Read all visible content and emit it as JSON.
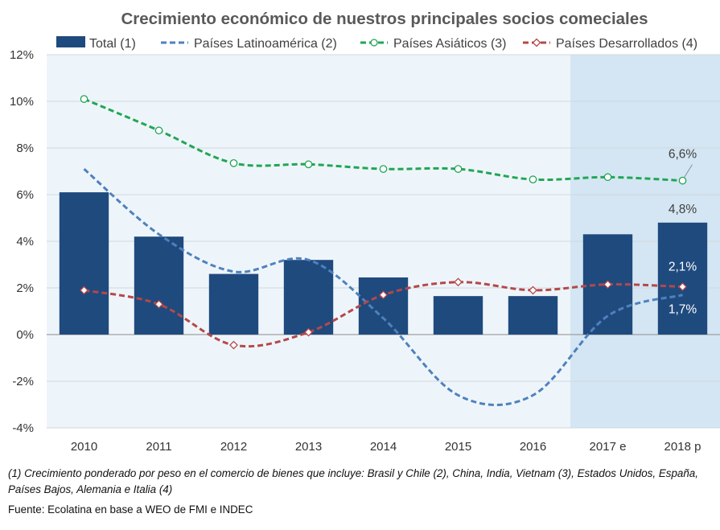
{
  "chart_data": {
    "type": "bar+line",
    "title": "Crecimiento económico de nuestros principales socios comeciales",
    "categories": [
      "2010",
      "2011",
      "2012",
      "2013",
      "2014",
      "2015",
      "2016",
      "2017 e",
      "2018 p"
    ],
    "ylim": [
      -4,
      12
    ],
    "yticks": [
      -4,
      -2,
      0,
      2,
      4,
      6,
      8,
      10,
      12
    ],
    "ytick_labels": [
      "-4%",
      "-2%",
      "0%",
      "2%",
      "4%",
      "6%",
      "8%",
      "10%",
      "12%"
    ],
    "grid": true,
    "legend_position": "top",
    "highlighted_categories": [
      "2017 e",
      "2018 p"
    ],
    "series": [
      {
        "name": "Total (1)",
        "kind": "bar",
        "color": "#1f4a7e",
        "values": [
          6.1,
          4.2,
          2.6,
          3.2,
          2.45,
          1.65,
          1.65,
          4.3,
          4.8
        ]
      },
      {
        "name": "Países Latinoamérica (2)",
        "kind": "line",
        "dash": "dash",
        "marker": "none",
        "color": "#4f81bd",
        "values": [
          7.1,
          4.3,
          2.7,
          3.2,
          0.7,
          -2.6,
          -2.6,
          0.8,
          1.7
        ]
      },
      {
        "name": "Países Asiáticos (3)",
        "kind": "line",
        "dash": "dash",
        "marker": "circle",
        "color": "#21a655",
        "values": [
          10.1,
          8.75,
          7.35,
          7.3,
          7.1,
          7.1,
          6.65,
          6.75,
          6.6
        ]
      },
      {
        "name": "Países Desarrollados (4)",
        "kind": "line",
        "dash": "dash",
        "marker": "diamond",
        "color": "#b4484a",
        "values": [
          1.9,
          1.3,
          -0.45,
          0.1,
          1.7,
          2.25,
          1.9,
          2.15,
          2.05
        ]
      }
    ],
    "data_labels": [
      {
        "series": "Países Asiáticos (3)",
        "category": "2018 p",
        "text": "6,6%"
      },
      {
        "series": "Total (1)",
        "category": "2018 p",
        "text": "4,8%"
      },
      {
        "series": "Países Desarrollados (4)",
        "category": "2018 p",
        "text": "2,1%"
      },
      {
        "series": "Países Latinoamérica (2)",
        "category": "2018 p",
        "text": "1,7%"
      }
    ]
  },
  "footnote": "(1) Crecimiento ponderado por peso en el comercio de bienes que incluye: Brasil y Chile (2), China, India, Vietnam (3), Estados Unidos, España, Países Bajos, Alemania e Italia (4)",
  "source": "Fuente: Ecolatina en base a WEO de FMI e INDEC",
  "colors": {
    "plot_bg": "#eef5fa",
    "highlight_bg": "#d4e6f3",
    "grid": "#d0d8de",
    "title": "#595959"
  }
}
